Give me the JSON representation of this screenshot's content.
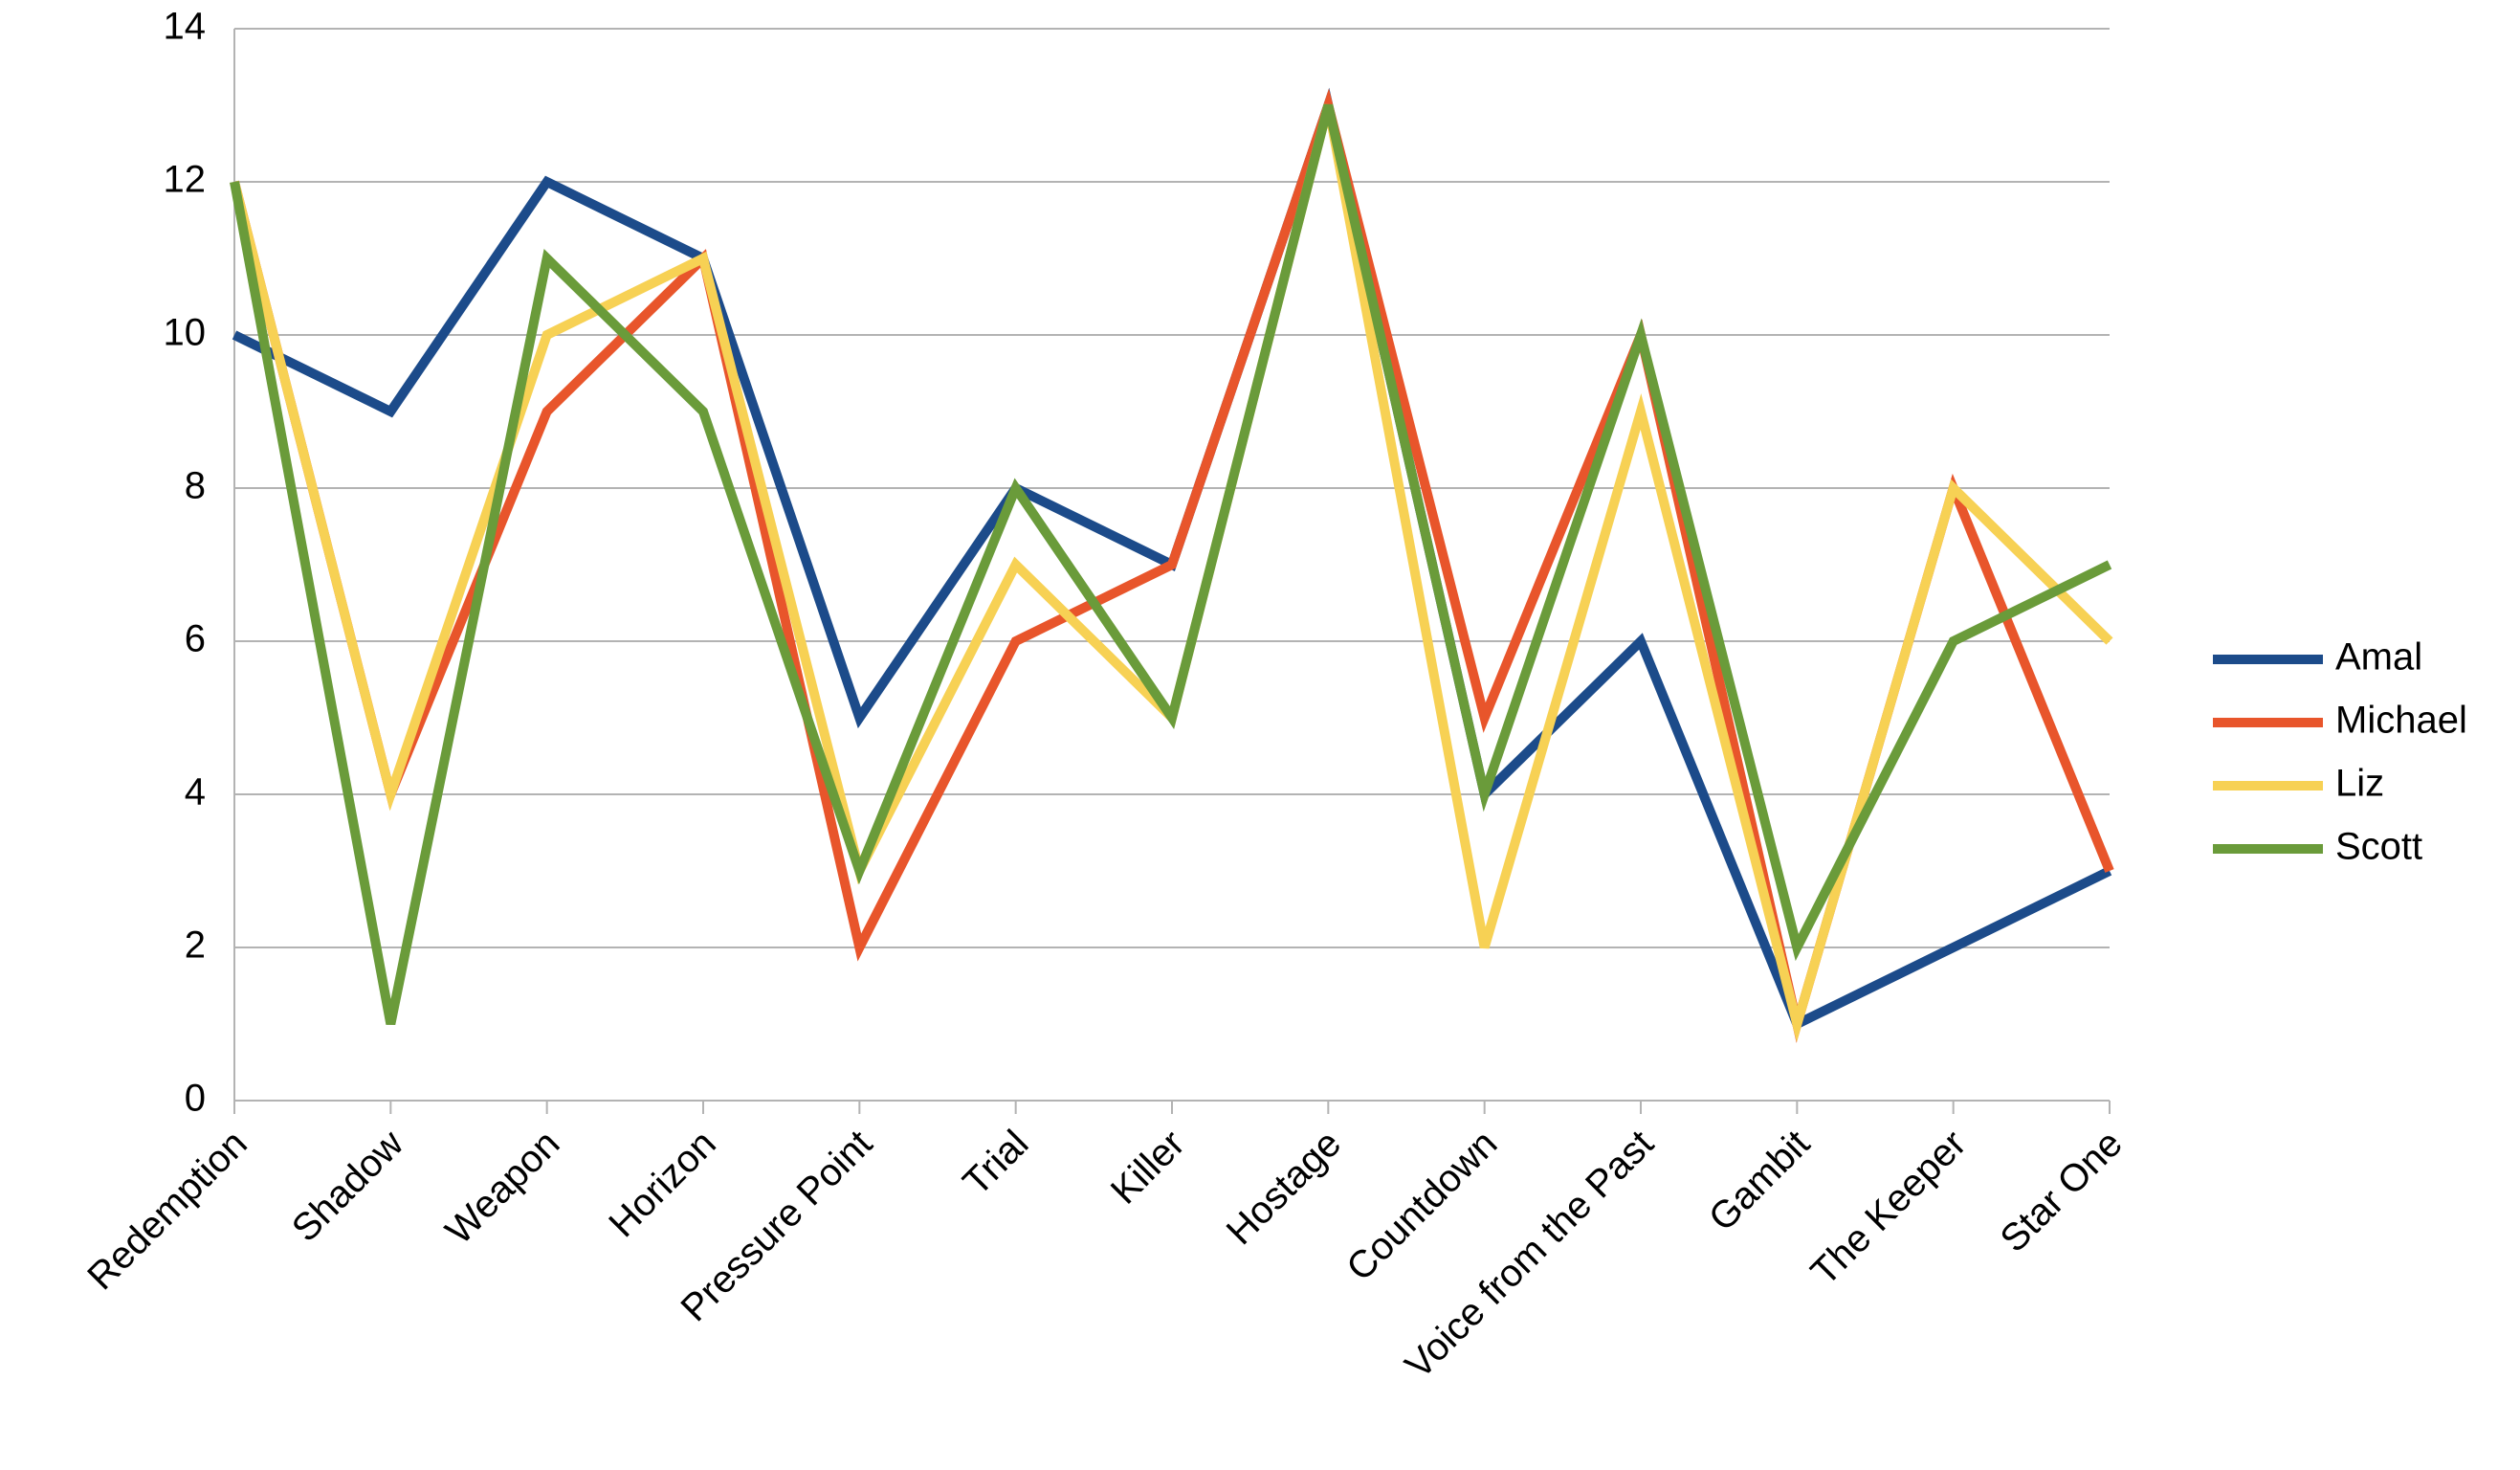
{
  "chart_data": {
    "type": "line",
    "categories": [
      "Redemption",
      "Shadow",
      "Weapon",
      "Horizon",
      "Pressure Point",
      "Trial",
      "Killer",
      "Hostage",
      "Countdown",
      "Voice from the Past",
      "Gambit",
      "The Keeper",
      "Star One"
    ],
    "series": [
      {
        "name": "Amal",
        "color": "#1c4b8a",
        "values": [
          10,
          9,
          12,
          11,
          5,
          8,
          7,
          13,
          4,
          6,
          1,
          2,
          3
        ]
      },
      {
        "name": "Michael",
        "color": "#e8552b",
        "values": [
          12,
          4,
          9,
          11,
          2,
          6,
          7,
          13,
          5,
          10,
          1,
          8,
          3
        ]
      },
      {
        "name": "Liz",
        "color": "#f7d154",
        "values": [
          12,
          4,
          10,
          11,
          3,
          7,
          5,
          13,
          2,
          9,
          1,
          8,
          6
        ]
      },
      {
        "name": "Scott",
        "color": "#6a9b3a",
        "values": [
          12,
          1,
          11,
          9,
          3,
          8,
          5,
          13,
          4,
          10,
          2,
          6,
          7
        ]
      }
    ],
    "ylim": [
      0,
      14
    ],
    "yticks": [
      0,
      2,
      4,
      6,
      8,
      10,
      12,
      14
    ],
    "grid": true,
    "legend": "right"
  }
}
